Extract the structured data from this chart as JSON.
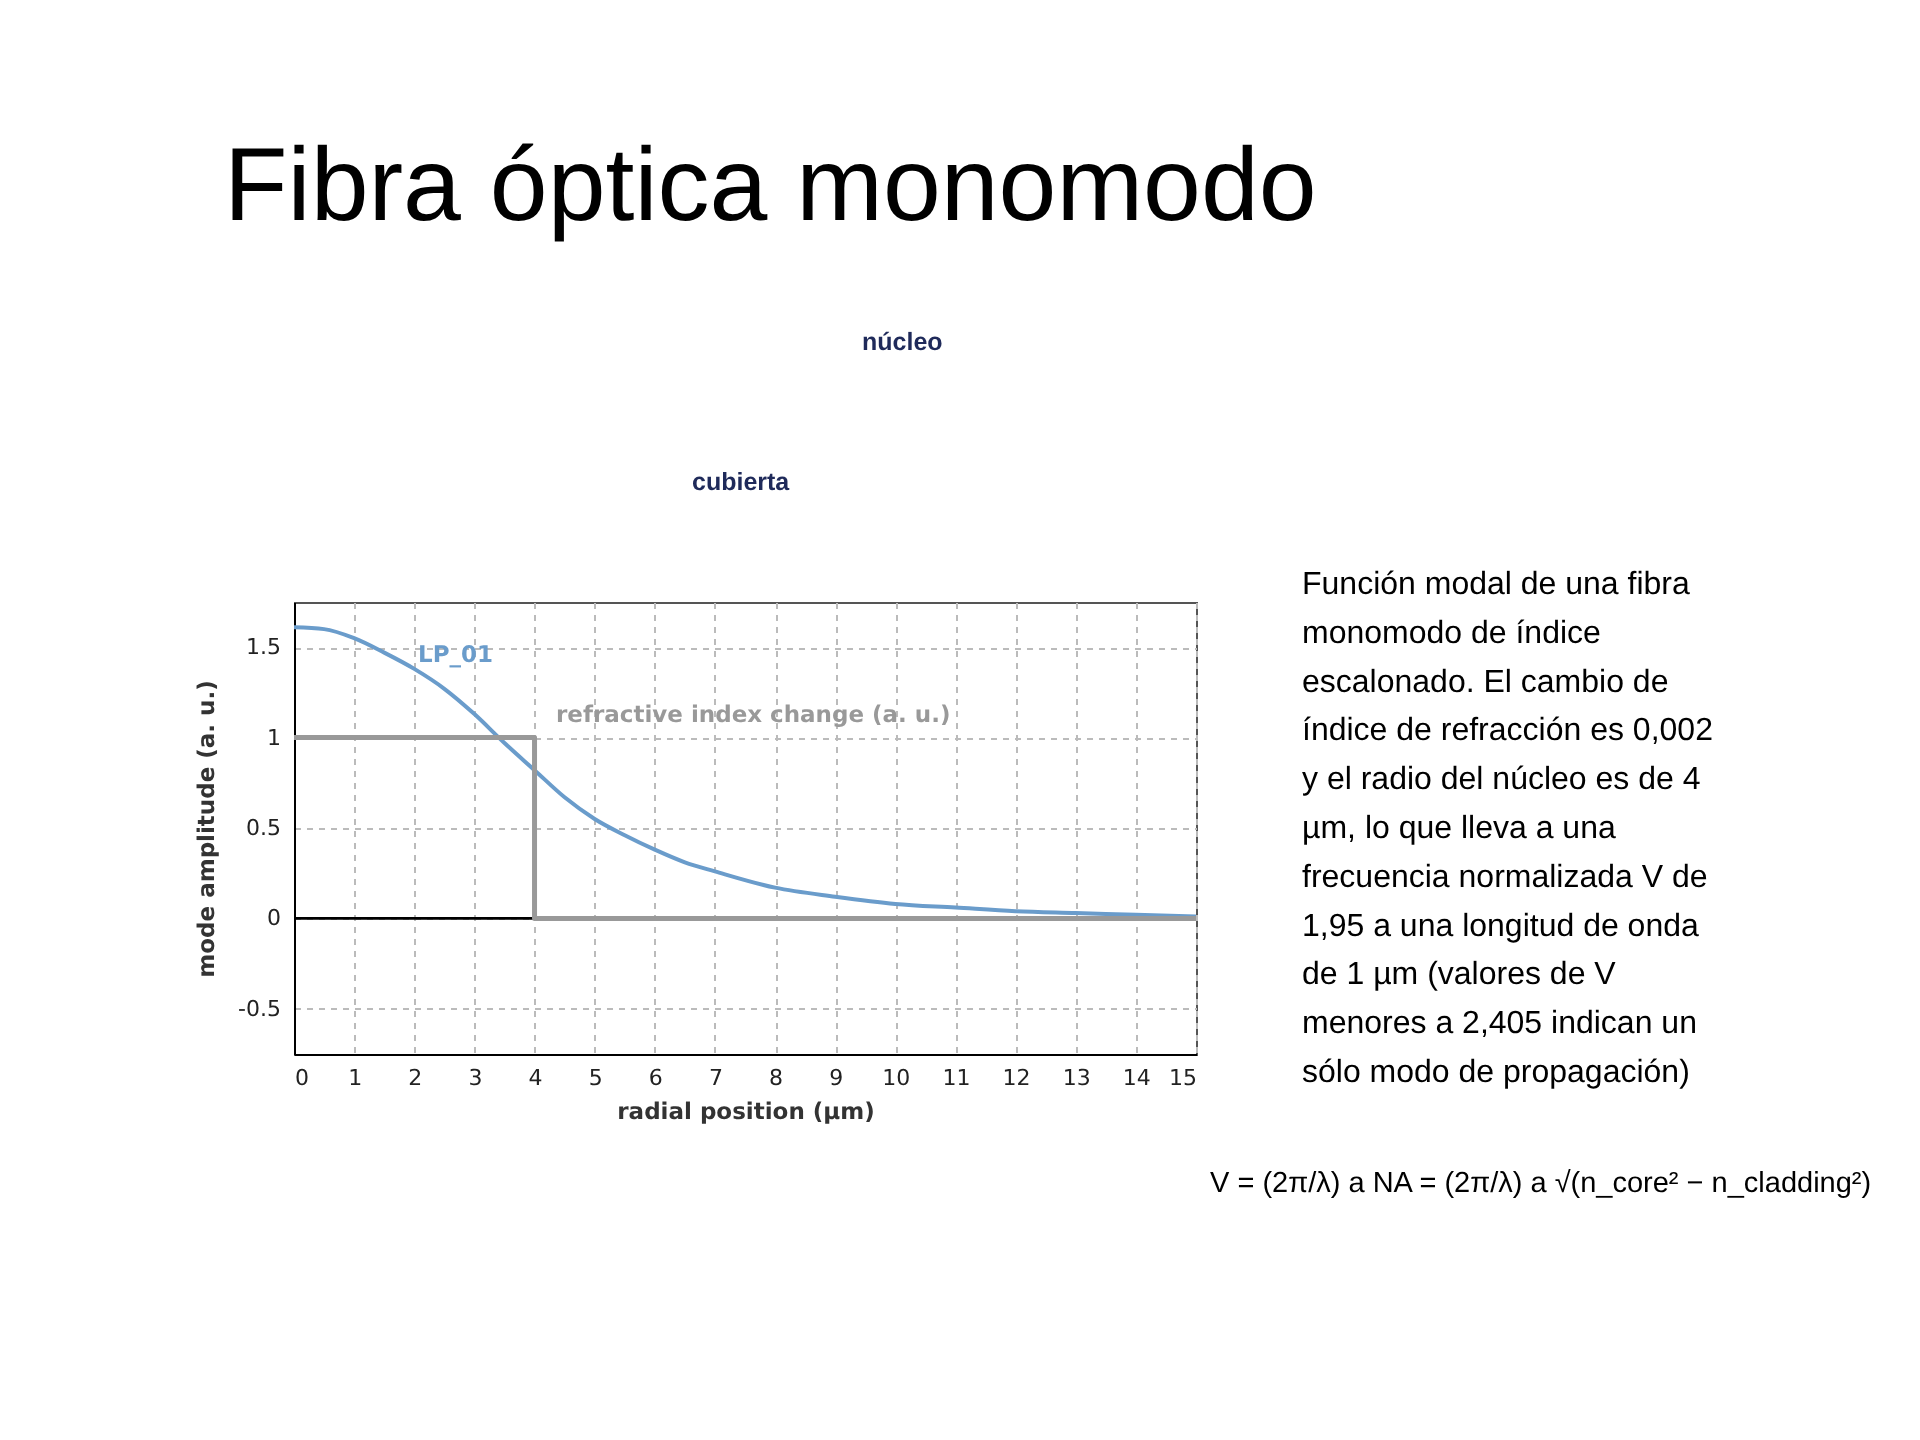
{
  "chart_data": {
    "type": "line",
    "title": "Fibra óptica monomodo",
    "xlabel": "radial position (µm)",
    "ylabel": "mode amplitude (a. u.)",
    "series": [
      {
        "name": "LP_01",
        "color": "#6a9ccb",
        "x": [
          0,
          0.5,
          1,
          1.5,
          2,
          2.5,
          3,
          3.5,
          4,
          4.5,
          5,
          5.5,
          6,
          6.5,
          7,
          8,
          9,
          10,
          11,
          12,
          13,
          14,
          15
        ],
        "values": [
          1.61,
          1.6,
          1.55,
          1.47,
          1.38,
          1.27,
          1.13,
          0.97,
          0.82,
          0.67,
          0.55,
          0.46,
          0.38,
          0.31,
          0.26,
          0.17,
          0.12,
          0.08,
          0.06,
          0.04,
          0.03,
          0.02,
          0.01
        ]
      },
      {
        "name": "refractive index change (a. u.)",
        "type": "step",
        "color": "#999999",
        "x": [
          0,
          4,
          15
        ],
        "values": [
          1,
          0,
          0
        ]
      }
    ],
    "xlim": [
      0,
      15
    ],
    "xticks": [
      0,
      1,
      2,
      3,
      4,
      5,
      6,
      7,
      8,
      9,
      10,
      11,
      12,
      13,
      14,
      15
    ],
    "ylim": [
      -0.75,
      1.75
    ],
    "yticks": [
      -0.5,
      0,
      0.5,
      1,
      1.5
    ],
    "grid": true,
    "ref_lines": [
      {
        "axis": "y",
        "value": 0,
        "color": "#000000"
      }
    ],
    "annotations": [
      "Función modal de una fibra\nmonomodo de índice\nescalonado. El cambio de\níndice de refracción es 0,002\ny el radio del núcleo es de 4\nµm, lo que lleva a una\nfrecuencia normalizada V de\n1,95 a una longitud de onda\nde 1 µm (valores de V\nmenores a 2,405 indican un\nsólo modo de propagación)",
      "V = (2π/λ) a NA = (2π/λ) a √(n_core² − n_cladding²)",
      "núcleo",
      "cubierta"
    ]
  }
}
